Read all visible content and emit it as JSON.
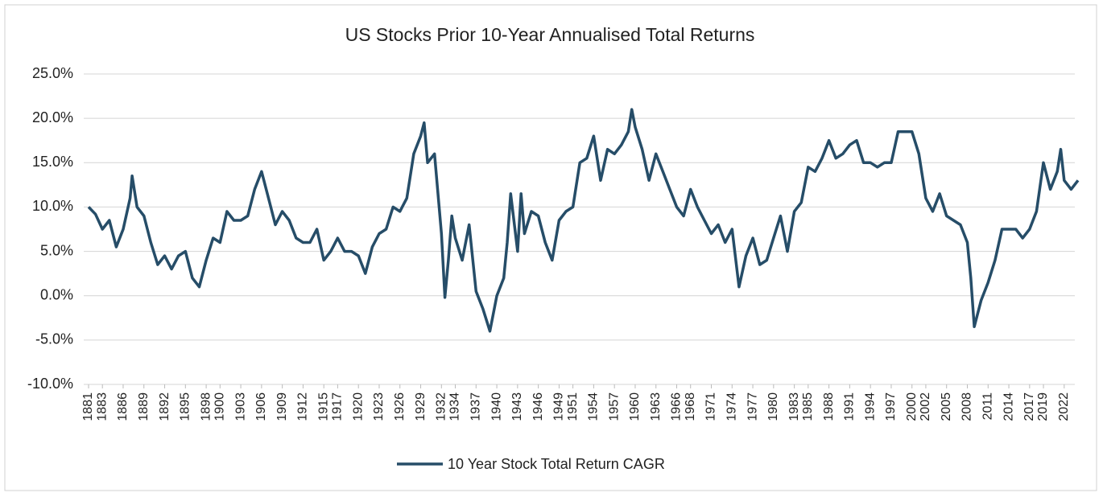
{
  "chart_data": {
    "type": "line",
    "title": "US Stocks Prior 10-Year Annualised Total Returns",
    "x": [
      1881,
      1882,
      1883,
      1884,
      1885,
      1886,
      1887,
      1887.3,
      1888,
      1889,
      1890,
      1891,
      1892,
      1893,
      1894,
      1895,
      1896,
      1897,
      1898,
      1899,
      1900,
      1901,
      1902,
      1903,
      1904,
      1905,
      1906,
      1907,
      1908,
      1909,
      1910,
      1911,
      1912,
      1913,
      1914,
      1915,
      1916,
      1917,
      1918,
      1919,
      1920,
      1921,
      1922,
      1923,
      1924,
      1925,
      1926,
      1927,
      1928,
      1929,
      1929.5,
      1930,
      1931,
      1932,
      1932.5,
      1933,
      1933.5,
      1934,
      1935,
      1936,
      1937,
      1938,
      1939,
      1940,
      1941,
      1941.5,
      1942,
      1943,
      1943.5,
      1944,
      1945,
      1946,
      1947,
      1948,
      1949,
      1950,
      1951,
      1952,
      1953,
      1954,
      1955,
      1956,
      1957,
      1958,
      1959,
      1959.5,
      1960,
      1961,
      1962,
      1963,
      1964,
      1965,
      1966,
      1967,
      1968,
      1969,
      1970,
      1971,
      1972,
      1973,
      1974,
      1975,
      1976,
      1977,
      1978,
      1979,
      1980,
      1981,
      1982,
      1983,
      1984,
      1985,
      1986,
      1987,
      1988,
      1989,
      1990,
      1991,
      1992,
      1993,
      1994,
      1995,
      1996,
      1997,
      1998,
      1999,
      2000,
      2001,
      2002,
      2003,
      2004,
      2005,
      2006,
      2007,
      2008,
      2008.5,
      2009,
      2010,
      2011,
      2012,
      2013,
      2014,
      2015,
      2016,
      2017,
      2018,
      2019,
      2020,
      2021,
      2021.5,
      2022,
      2023,
      2024
    ],
    "series": [
      {
        "name": "10 Year Stock Total Return CAGR",
        "color": "#264d68",
        "values": [
          10,
          9.2,
          7.5,
          8.5,
          5.5,
          7.5,
          11,
          13.5,
          10,
          9,
          6,
          3.5,
          4.5,
          3,
          4.5,
          5,
          2,
          1,
          4,
          6.5,
          6,
          9.5,
          8.5,
          8.5,
          9,
          12,
          14,
          11,
          8,
          9.5,
          8.5,
          6.5,
          6,
          6,
          7.5,
          4,
          5,
          6.5,
          5,
          5,
          4.5,
          2.5,
          5.5,
          7,
          7.5,
          10,
          9.5,
          11,
          16,
          18,
          19.5,
          15,
          16,
          7,
          -0.2,
          4,
          9,
          6.5,
          4,
          8,
          0.5,
          -1.5,
          -4,
          0,
          2,
          6,
          11.5,
          5,
          11.5,
          7,
          9.5,
          9,
          6,
          4,
          8.5,
          9.5,
          10,
          15,
          15.5,
          18,
          13,
          16.5,
          16,
          17,
          18.5,
          21,
          19,
          16.5,
          13,
          16,
          14,
          12,
          10,
          9,
          12,
          10,
          8.5,
          7,
          8,
          6,
          7.5,
          1,
          4.5,
          6.5,
          3.5,
          4,
          6.5,
          9,
          5,
          9.5,
          10.5,
          14.5,
          14,
          15.5,
          17.5,
          15.5,
          16,
          17,
          17.5,
          15,
          15,
          14.5,
          15,
          15,
          18.5,
          18.5,
          18.5,
          16,
          11,
          9.5,
          11.5,
          9,
          8.5,
          8,
          6,
          2,
          -3.5,
          -0.5,
          1.5,
          4,
          7.5,
          7.5,
          7.5,
          6.5,
          7.5,
          9.5,
          15,
          12,
          14,
          16.5,
          13,
          12,
          13
        ]
      }
    ],
    "xlim": [
      1881,
      2024
    ],
    "xticks": [
      1881,
      1883,
      1886,
      1889,
      1892,
      1895,
      1898,
      1900,
      1903,
      1906,
      1909,
      1912,
      1915,
      1917,
      1920,
      1923,
      1926,
      1929,
      1932,
      1934,
      1937,
      1940,
      1943,
      1946,
      1949,
      1951,
      1954,
      1957,
      1960,
      1963,
      1966,
      1968,
      1971,
      1974,
      1977,
      1980,
      1983,
      1985,
      1988,
      1991,
      1994,
      1997,
      2000,
      2002,
      2005,
      2008,
      2011,
      2014,
      2017,
      2019,
      2022
    ],
    "ylim": [
      -10,
      25
    ],
    "yticks": [
      {
        "value": -10,
        "label": "-10.0%"
      },
      {
        "value": -5,
        "label": "-5.0%"
      },
      {
        "value": 0,
        "label": "0.0%"
      },
      {
        "value": 5,
        "label": "5.0%"
      },
      {
        "value": 10,
        "label": "10.0%"
      },
      {
        "value": 15,
        "label": "15.0%"
      },
      {
        "value": 20,
        "label": "20.0%"
      },
      {
        "value": 25,
        "label": "25.0%"
      }
    ],
    "grid": true,
    "legend": "bottom"
  }
}
